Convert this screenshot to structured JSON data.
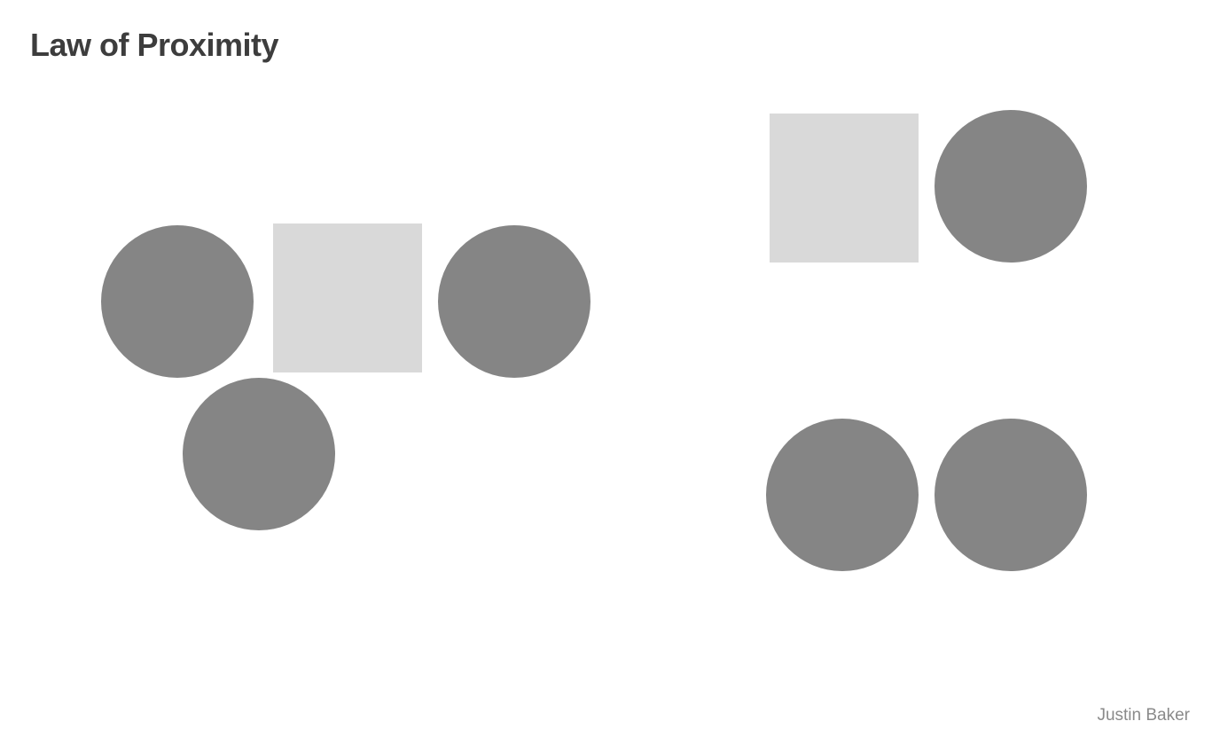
{
  "title": "Law of Proximity",
  "author": "Justin Baker",
  "colors": {
    "circle": "#858585",
    "square": "#d9d9d9",
    "title": "#3d3d3d",
    "author": "#8a8a8a",
    "background": "#ffffff"
  },
  "groups": [
    {
      "name": "left-cluster",
      "shapes": [
        {
          "id": "c1",
          "type": "circle"
        },
        {
          "id": "s1",
          "type": "square"
        },
        {
          "id": "c2",
          "type": "circle"
        },
        {
          "id": "c3",
          "type": "circle"
        }
      ]
    },
    {
      "name": "right-top-pair",
      "shapes": [
        {
          "id": "s2",
          "type": "square"
        },
        {
          "id": "c4",
          "type": "circle"
        }
      ]
    },
    {
      "name": "right-bottom-pair",
      "shapes": [
        {
          "id": "c5",
          "type": "circle"
        },
        {
          "id": "c6",
          "type": "circle"
        }
      ]
    }
  ]
}
